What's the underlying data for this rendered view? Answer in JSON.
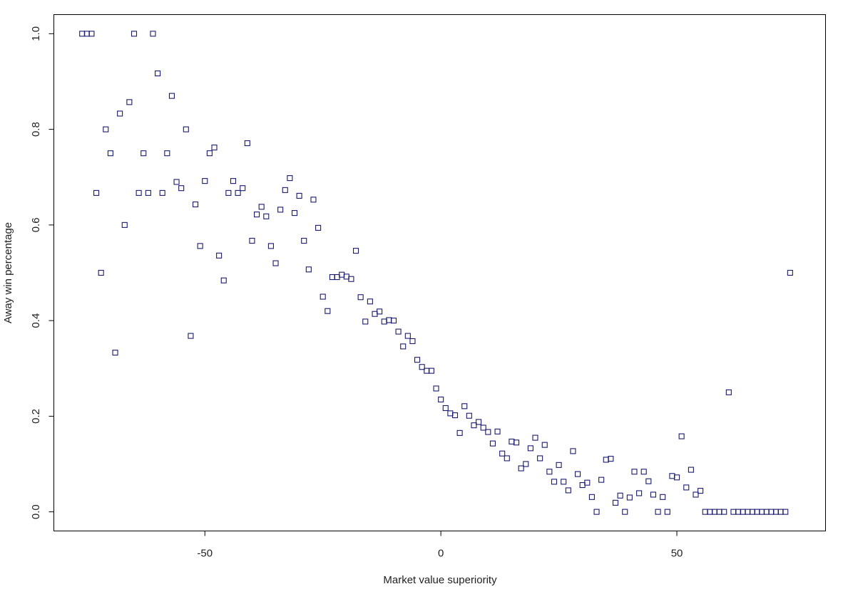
{
  "chart_data": {
    "type": "scatter",
    "title": "",
    "xlabel": "Market value superiority",
    "ylabel": "Away win percentage",
    "xlim": [
      -82,
      81.5
    ],
    "ylim": [
      -0.04,
      1.04
    ],
    "x_ticks": [
      -50,
      0,
      50
    ],
    "y_ticks": [
      0.0,
      0.2,
      0.4,
      0.6,
      0.8,
      1.0
    ],
    "x_tick_labels": [
      "-50",
      "0",
      "50"
    ],
    "y_tick_labels": [
      "0.0",
      "0.2",
      "0.4",
      "0.6",
      "0.8",
      "1.0"
    ],
    "grid": false,
    "marker": "open-square",
    "marker_color": "#1a1a6e",
    "points": [
      [
        -76,
        1.0
      ],
      [
        -75,
        1.0
      ],
      [
        -74,
        1.0
      ],
      [
        -73,
        0.667
      ],
      [
        -72,
        0.5
      ],
      [
        -71,
        0.8
      ],
      [
        -70,
        0.75
      ],
      [
        -69,
        0.333
      ],
      [
        -68,
        0.833
      ],
      [
        -67,
        0.6
      ],
      [
        -66,
        0.857
      ],
      [
        -65,
        1.0
      ],
      [
        -64,
        0.667
      ],
      [
        -63,
        0.75
      ],
      [
        -62,
        0.667
      ],
      [
        -61,
        1.0
      ],
      [
        -60,
        0.917
      ],
      [
        -59,
        0.667
      ],
      [
        -58,
        0.75
      ],
      [
        -57,
        0.87
      ],
      [
        -56,
        0.69
      ],
      [
        -55,
        0.677
      ],
      [
        -54,
        0.8
      ],
      [
        -53,
        0.368
      ],
      [
        -52,
        0.643
      ],
      [
        -51,
        0.556
      ],
      [
        -50,
        0.692
      ],
      [
        -49,
        0.75
      ],
      [
        -48,
        0.762
      ],
      [
        -47,
        0.536
      ],
      [
        -46,
        0.484
      ],
      [
        -45,
        0.667
      ],
      [
        -44,
        0.692
      ],
      [
        -43,
        0.667
      ],
      [
        -42,
        0.677
      ],
      [
        -41,
        0.771
      ],
      [
        -40,
        0.567
      ],
      [
        -39,
        0.622
      ],
      [
        -38,
        0.638
      ],
      [
        -37,
        0.618
      ],
      [
        -36,
        0.556
      ],
      [
        -35,
        0.52
      ],
      [
        -34,
        0.632
      ],
      [
        -33,
        0.673
      ],
      [
        -32,
        0.698
      ],
      [
        -31,
        0.625
      ],
      [
        -30,
        0.661
      ],
      [
        -29,
        0.567
      ],
      [
        -28,
        0.507
      ],
      [
        -27,
        0.653
      ],
      [
        -26,
        0.594
      ],
      [
        -25,
        0.45
      ],
      [
        -24,
        0.42
      ],
      [
        -23,
        0.491
      ],
      [
        -22,
        0.491
      ],
      [
        -21,
        0.496
      ],
      [
        -20,
        0.492
      ],
      [
        -19,
        0.487
      ],
      [
        -18,
        0.546
      ],
      [
        -17,
        0.449
      ],
      [
        -16,
        0.398
      ],
      [
        -15,
        0.44
      ],
      [
        -14,
        0.414
      ],
      [
        -13,
        0.419
      ],
      [
        -12,
        0.398
      ],
      [
        -11,
        0.401
      ],
      [
        -10,
        0.4
      ],
      [
        -9,
        0.377
      ],
      [
        -8,
        0.346
      ],
      [
        -7,
        0.368
      ],
      [
        -6,
        0.357
      ],
      [
        -5,
        0.318
      ],
      [
        -4,
        0.303
      ],
      [
        -3,
        0.295
      ],
      [
        -2,
        0.295
      ],
      [
        -1,
        0.258
      ],
      [
        0,
        0.235
      ],
      [
        1,
        0.217
      ],
      [
        2,
        0.206
      ],
      [
        3,
        0.202
      ],
      [
        4,
        0.165
      ],
      [
        5,
        0.221
      ],
      [
        6,
        0.201
      ],
      [
        7,
        0.181
      ],
      [
        8,
        0.188
      ],
      [
        9,
        0.176
      ],
      [
        10,
        0.167
      ],
      [
        11,
        0.143
      ],
      [
        12,
        0.168
      ],
      [
        13,
        0.122
      ],
      [
        14,
        0.112
      ],
      [
        15,
        0.147
      ],
      [
        16,
        0.145
      ],
      [
        17,
        0.091
      ],
      [
        18,
        0.1
      ],
      [
        19,
        0.133
      ],
      [
        20,
        0.155
      ],
      [
        21,
        0.112
      ],
      [
        22,
        0.14
      ],
      [
        23,
        0.084
      ],
      [
        24,
        0.063
      ],
      [
        25,
        0.098
      ],
      [
        26,
        0.063
      ],
      [
        27,
        0.045
      ],
      [
        28,
        0.127
      ],
      [
        29,
        0.079
      ],
      [
        30,
        0.056
      ],
      [
        31,
        0.061
      ],
      [
        32,
        0.031
      ],
      [
        33,
        0.0
      ],
      [
        34,
        0.067
      ],
      [
        35,
        0.109
      ],
      [
        36,
        0.111
      ],
      [
        37,
        0.019
      ],
      [
        38,
        0.034
      ],
      [
        39,
        0.0
      ],
      [
        40,
        0.03
      ],
      [
        41,
        0.084
      ],
      [
        42,
        0.039
      ],
      [
        43,
        0.084
      ],
      [
        44,
        0.064
      ],
      [
        45,
        0.036
      ],
      [
        46,
        0.0
      ],
      [
        47,
        0.031
      ],
      [
        48,
        0.0
      ],
      [
        49,
        0.075
      ],
      [
        50,
        0.072
      ],
      [
        51,
        0.158
      ],
      [
        52,
        0.051
      ],
      [
        53,
        0.088
      ],
      [
        54,
        0.036
      ],
      [
        55,
        0.044
      ],
      [
        56,
        0.0
      ],
      [
        57,
        0.0
      ],
      [
        58,
        0.0
      ],
      [
        59,
        0.0
      ],
      [
        60,
        0.0
      ],
      [
        61,
        0.25
      ],
      [
        62,
        0.0
      ],
      [
        63,
        0.0
      ],
      [
        64,
        0.0
      ],
      [
        65,
        0.0
      ],
      [
        66,
        0.0
      ],
      [
        67,
        0.0
      ],
      [
        68,
        0.0
      ],
      [
        69,
        0.0
      ],
      [
        70,
        0.0
      ],
      [
        71,
        0.0
      ],
      [
        72,
        0.0
      ],
      [
        73,
        0.0
      ],
      [
        74,
        0.5
      ]
    ]
  }
}
